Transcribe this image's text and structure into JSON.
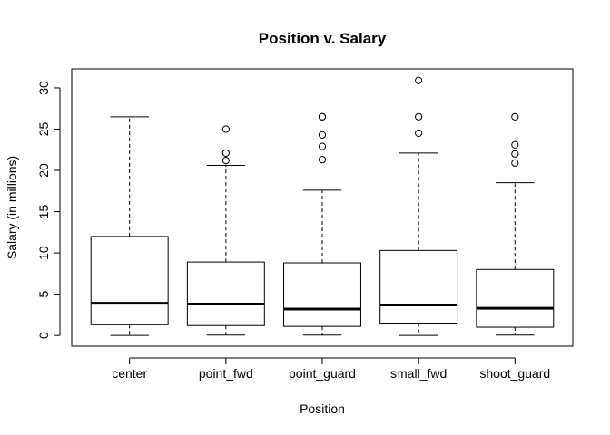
{
  "chart_data": {
    "type": "box",
    "title": "Position v. Salary",
    "xlabel": "Position",
    "ylabel": "Salary (in millions)",
    "ylim": [
      -1.3,
      32.3
    ],
    "yticks": [
      0,
      5,
      10,
      15,
      20,
      25,
      30
    ],
    "categories": [
      "center",
      "point_fwd",
      "point_guard",
      "small_fwd",
      "shoot_guard"
    ],
    "boxes": [
      {
        "category": "center",
        "whisker_low": 0.0,
        "q1": 1.3,
        "median": 3.9,
        "q3": 12.0,
        "whisker_high": 26.5,
        "outliers": []
      },
      {
        "category": "point_fwd",
        "whisker_low": 0.05,
        "q1": 1.2,
        "median": 3.8,
        "q3": 8.9,
        "whisker_high": 20.6,
        "outliers": [
          21.2,
          22.1,
          25.0
        ]
      },
      {
        "category": "point_guard",
        "whisker_low": 0.05,
        "q1": 1.1,
        "median": 3.2,
        "q3": 8.8,
        "whisker_high": 17.6,
        "outliers": [
          21.3,
          22.9,
          24.3,
          26.5,
          26.5
        ]
      },
      {
        "category": "small_fwd",
        "whisker_low": 0.0,
        "q1": 1.5,
        "median": 3.7,
        "q3": 10.3,
        "whisker_high": 22.1,
        "outliers": [
          24.5,
          26.5,
          30.9
        ]
      },
      {
        "category": "shoot_guard",
        "whisker_low": 0.05,
        "q1": 1.0,
        "median": 3.3,
        "q3": 8.0,
        "whisker_high": 18.5,
        "outliers": [
          20.9,
          22.0,
          23.1,
          26.5
        ]
      }
    ],
    "grid": false,
    "legend": "none"
  }
}
